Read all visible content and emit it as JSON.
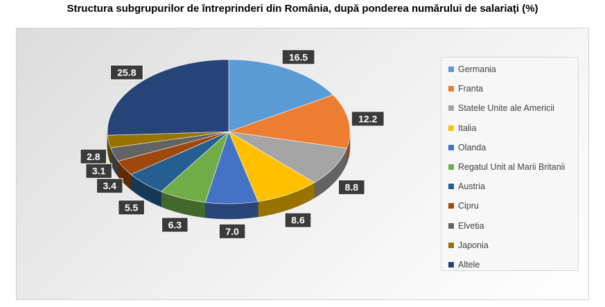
{
  "chart_data": {
    "type": "pie",
    "title": "Structura subgrupurilor de întreprinderi din România, după ponderea numărului de salariaţi (%)",
    "legend_position": "right",
    "slices": [
      {
        "label": "Germania",
        "value": 16.5,
        "display": "16.5",
        "color": "#5b9bd5"
      },
      {
        "label": "Franta",
        "value": 12.2,
        "display": "12.2",
        "color": "#ed7d31"
      },
      {
        "label": "Statele Unite ale Americii",
        "value": 8.8,
        "display": "8.8",
        "color": "#a5a5a5"
      },
      {
        "label": "Italia",
        "value": 8.6,
        "display": "8.6",
        "color": "#ffc000"
      },
      {
        "label": "Olanda",
        "value": 7.0,
        "display": "7.0",
        "color": "#4472c4"
      },
      {
        "label": "Regatul Unit al Marii Britanii",
        "value": 6.3,
        "display": "6.3",
        "color": "#70ad47"
      },
      {
        "label": "Austria",
        "value": 5.5,
        "display": "5.5",
        "color": "#255e91"
      },
      {
        "label": "Cipru",
        "value": 3.4,
        "display": "3.4",
        "color": "#9e480e"
      },
      {
        "label": "Elvetia",
        "value": 3.1,
        "display": "3.1",
        "color": "#636363"
      },
      {
        "label": "Japonia",
        "value": 2.8,
        "display": "2.8",
        "color": "#997300"
      },
      {
        "label": "Altele",
        "value": 25.8,
        "display": "25.8",
        "color": "#264478"
      }
    ]
  }
}
